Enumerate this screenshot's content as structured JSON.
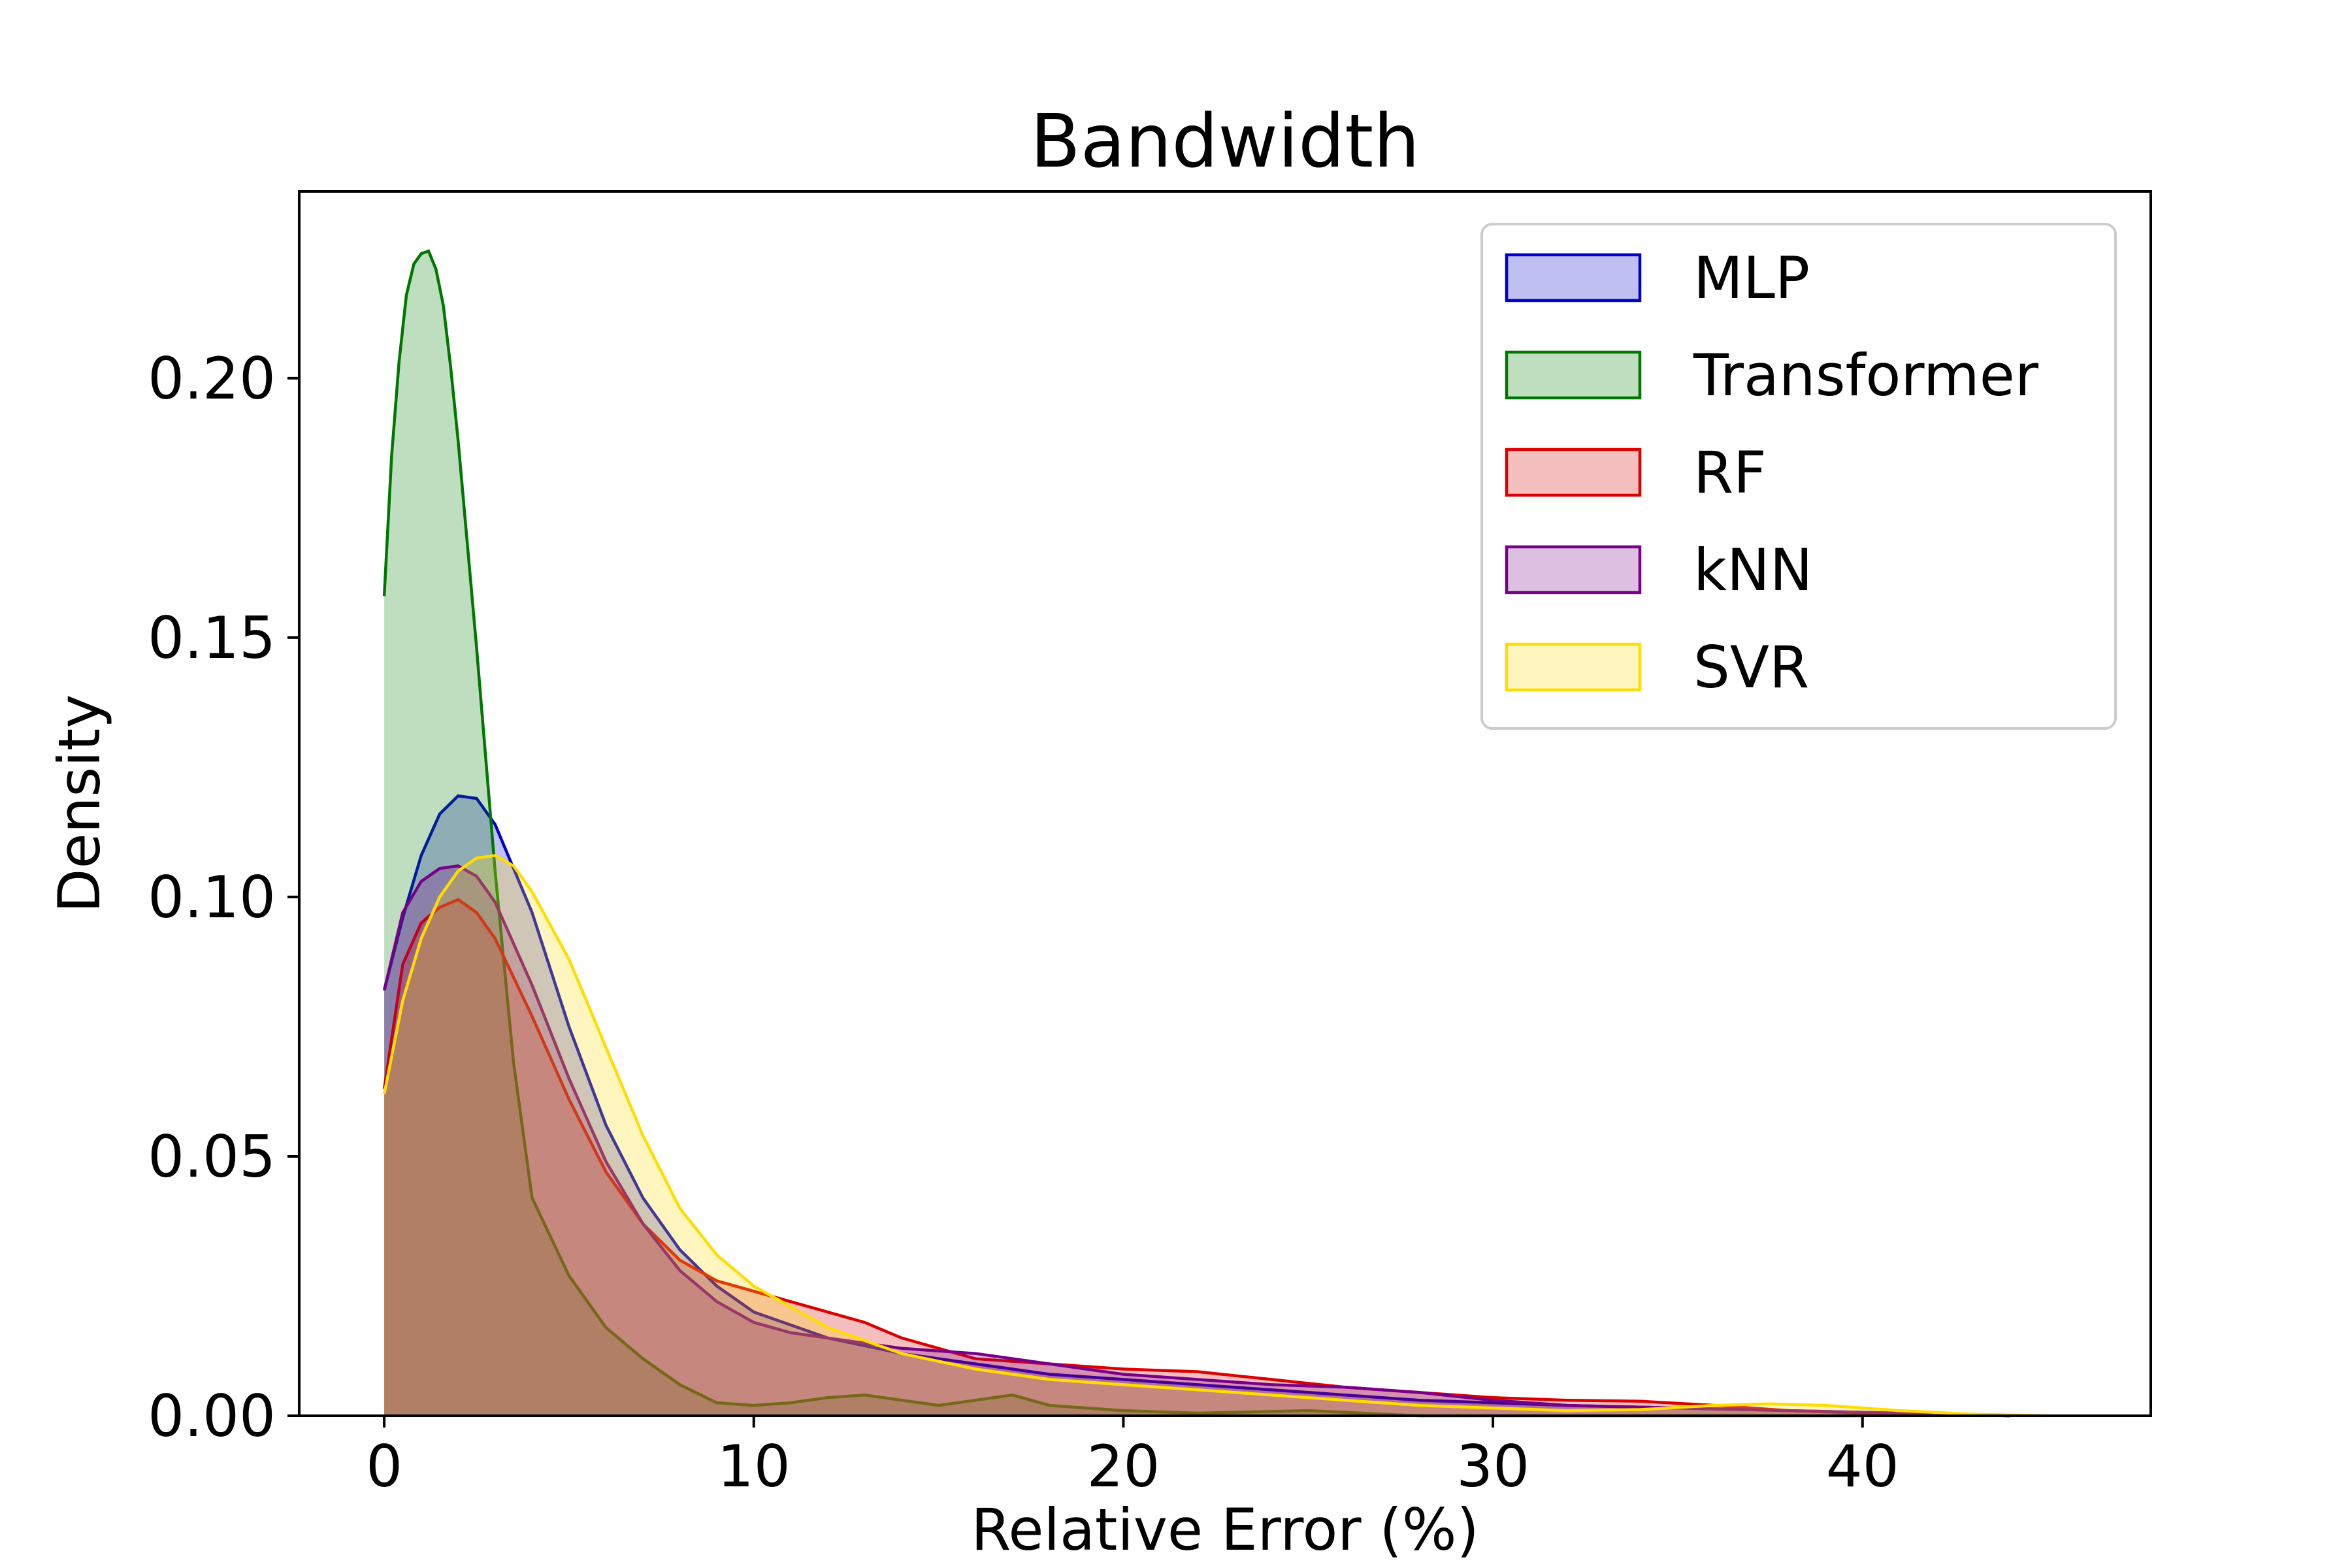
{
  "chart_data": {
    "type": "area",
    "title": "Bandwidth",
    "xlabel": "Relative Error (%)",
    "ylabel": "Density",
    "xlim": [
      -2.3,
      47.8
    ],
    "ylim": [
      0,
      0.236
    ],
    "xticks": [
      0,
      10,
      20,
      30,
      40
    ],
    "xtick_labels": [
      "0",
      "10",
      "20",
      "30",
      "40"
    ],
    "yticks": [
      0.0,
      0.05,
      0.1,
      0.15,
      0.2
    ],
    "ytick_labels": [
      "0.00",
      "0.05",
      "0.10",
      "0.15",
      "0.20"
    ],
    "legend_position": "top-right",
    "grid": false,
    "series": [
      {
        "name": "MLP",
        "color": "#0000cc",
        "x": [
          0,
          0.5,
          1,
          1.5,
          2,
          2.5,
          3,
          4,
          5,
          6,
          7,
          8,
          9,
          10,
          12,
          14,
          16,
          18,
          20,
          22,
          24,
          26,
          28,
          30,
          32,
          35,
          38,
          41,
          44
        ],
        "y": [
          0.082,
          0.096,
          0.108,
          0.116,
          0.1195,
          0.119,
          0.114,
          0.097,
          0.075,
          0.056,
          0.042,
          0.032,
          0.025,
          0.02,
          0.015,
          0.012,
          0.01,
          0.008,
          0.007,
          0.006,
          0.005,
          0.004,
          0.003,
          0.0025,
          0.002,
          0.0015,
          0.001,
          0.0005,
          0.0
        ]
      },
      {
        "name": "Transformer",
        "color": "#007700",
        "x": [
          0,
          0.2,
          0.4,
          0.6,
          0.8,
          1,
          1.2,
          1.4,
          1.6,
          1.8,
          2,
          2.5,
          3,
          3.5,
          4,
          5,
          6,
          7,
          8,
          9,
          10,
          11,
          12,
          13,
          14,
          15,
          16,
          17,
          18,
          20,
          22,
          25,
          28,
          30,
          35,
          40
        ],
        "y": [
          0.158,
          0.185,
          0.203,
          0.216,
          0.222,
          0.224,
          0.2245,
          0.221,
          0.214,
          0.202,
          0.188,
          0.148,
          0.105,
          0.068,
          0.042,
          0.027,
          0.017,
          0.011,
          0.006,
          0.0025,
          0.002,
          0.0025,
          0.0035,
          0.004,
          0.003,
          0.002,
          0.003,
          0.004,
          0.002,
          0.001,
          0.0005,
          0.001,
          0.0,
          0.0,
          0.0,
          0.0
        ]
      },
      {
        "name": "RF",
        "color": "#dd0000",
        "x": [
          0,
          0.5,
          1,
          1.5,
          2,
          2.5,
          3,
          4,
          5,
          6,
          7,
          8,
          9,
          10,
          11,
          12,
          13,
          14,
          15,
          16,
          18,
          20,
          22,
          24,
          26,
          28,
          30,
          32,
          34,
          36,
          38,
          40,
          42,
          44
        ],
        "y": [
          0.063,
          0.087,
          0.095,
          0.098,
          0.0995,
          0.097,
          0.092,
          0.077,
          0.061,
          0.047,
          0.037,
          0.03,
          0.026,
          0.024,
          0.022,
          0.02,
          0.018,
          0.015,
          0.013,
          0.011,
          0.01,
          0.009,
          0.0085,
          0.007,
          0.0055,
          0.0045,
          0.0035,
          0.003,
          0.0028,
          0.002,
          0.001,
          0.0005,
          0.0002,
          0.0
        ]
      },
      {
        "name": "kNN",
        "color": "#770088",
        "x": [
          0,
          0.5,
          1,
          1.5,
          2,
          2.5,
          3,
          4,
          5,
          6,
          7,
          8,
          9,
          10,
          11,
          12,
          14,
          16,
          18,
          20,
          22,
          24,
          26,
          28,
          30,
          32,
          35,
          38,
          41,
          44
        ],
        "y": [
          0.082,
          0.097,
          0.103,
          0.1055,
          0.106,
          0.104,
          0.099,
          0.083,
          0.065,
          0.049,
          0.037,
          0.028,
          0.022,
          0.018,
          0.016,
          0.015,
          0.013,
          0.012,
          0.01,
          0.008,
          0.007,
          0.006,
          0.0055,
          0.0045,
          0.003,
          0.002,
          0.0015,
          0.001,
          0.0005,
          0.0
        ]
      },
      {
        "name": "SVR",
        "color": "#ffdd00",
        "x": [
          0,
          0.5,
          1,
          1.5,
          2,
          2.5,
          3,
          3.5,
          4,
          5,
          6,
          7,
          8,
          9,
          10,
          12,
          14,
          16,
          18,
          20,
          22,
          24,
          26,
          28,
          30,
          32,
          34,
          36,
          37.5,
          39,
          41,
          43,
          45
        ],
        "y": [
          0.062,
          0.08,
          0.092,
          0.1,
          0.105,
          0.1075,
          0.108,
          0.106,
          0.101,
          0.088,
          0.071,
          0.054,
          0.04,
          0.031,
          0.025,
          0.017,
          0.012,
          0.009,
          0.007,
          0.006,
          0.005,
          0.004,
          0.003,
          0.002,
          0.0015,
          0.001,
          0.0012,
          0.002,
          0.0023,
          0.002,
          0.001,
          0.0003,
          0.0
        ]
      }
    ]
  }
}
